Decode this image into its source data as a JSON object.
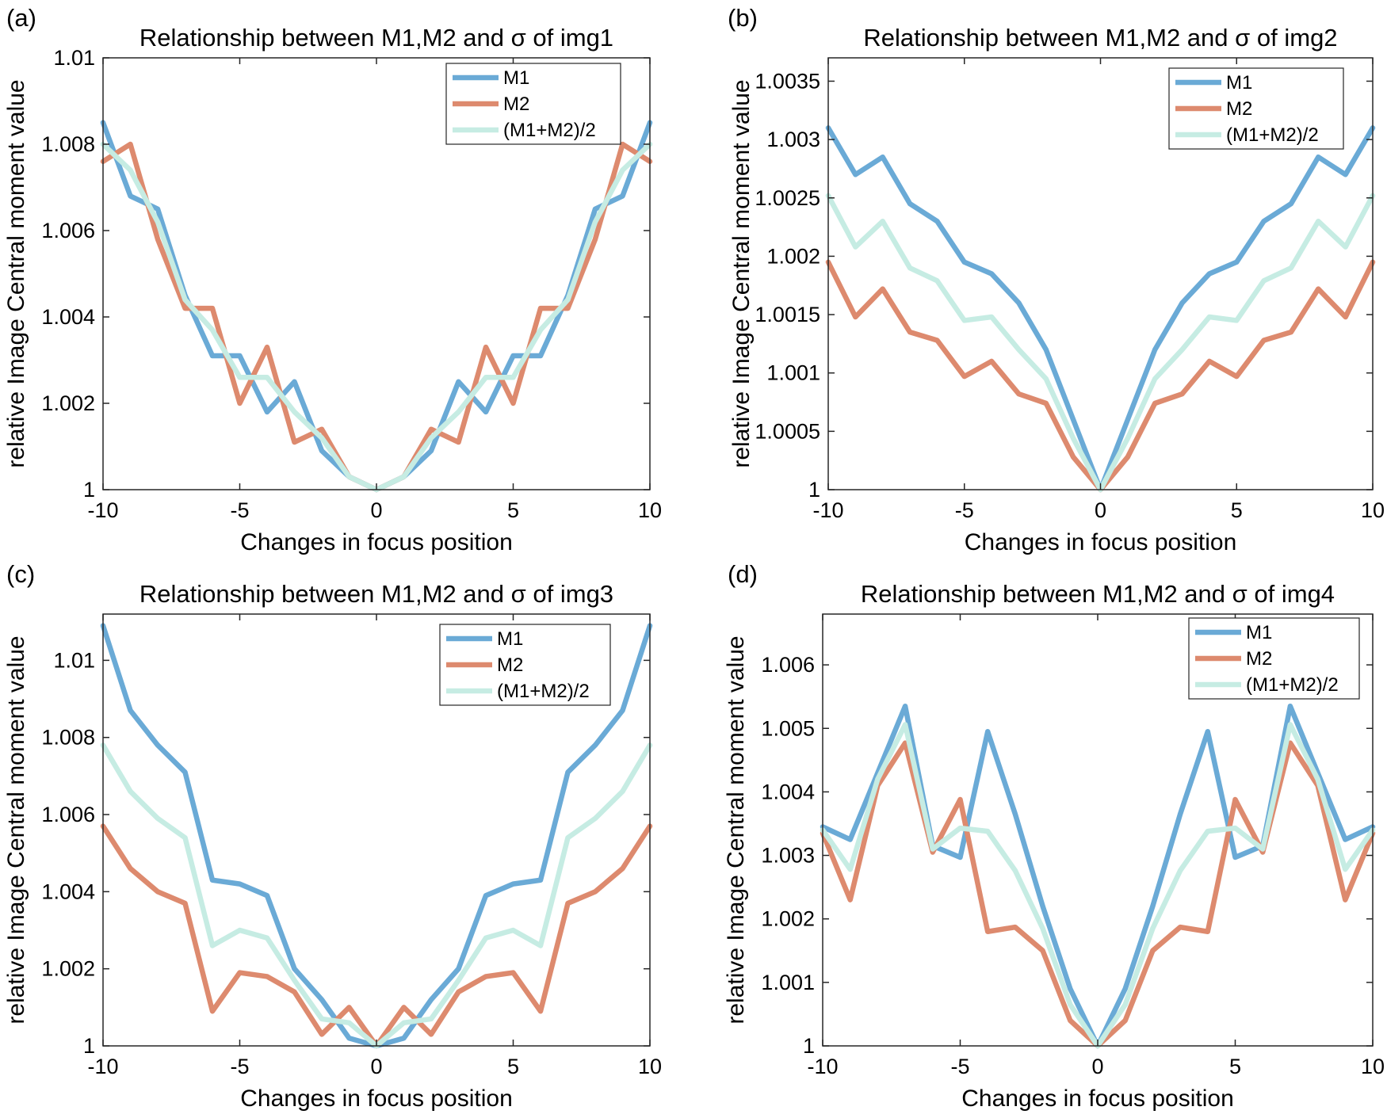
{
  "colors": {
    "M1": "#6aaad6",
    "M2": "#dd8a6e",
    "avg": "#c6ece3"
  },
  "chart_data": [
    {
      "type": "line",
      "panel_label": "(a)",
      "title": "Relationship between M1,M2 and σ of img1",
      "xlabel": "Changes in focus position",
      "ylabel": "relative Image Central moment value",
      "xlim": [
        -10,
        10
      ],
      "ylim": [
        1,
        1.01
      ],
      "xticks": [
        -10,
        -5,
        0,
        5,
        10
      ],
      "xtick_labels": [
        "-10",
        "-5",
        "0",
        "5",
        "10"
      ],
      "yticks": [
        1,
        1.002,
        1.004,
        1.006,
        1.008,
        1.01
      ],
      "ytick_labels": [
        "1",
        "1.002",
        "1.004",
        "1.006",
        "1.008",
        "1.01"
      ],
      "legend_position": "top-right",
      "x": [
        -10,
        -9,
        -8,
        -7,
        -6,
        -5,
        -4,
        -3,
        -2,
        -1,
        0,
        1,
        2,
        3,
        4,
        5,
        6,
        7,
        8,
        9,
        10
      ],
      "series": [
        {
          "name": "M1",
          "color_key": "M1",
          "values": [
            1.0085,
            1.0068,
            1.0065,
            1.0045,
            1.0031,
            1.0031,
            1.0018,
            1.0025,
            1.0009,
            1.0003,
            1.0,
            1.0003,
            1.0009,
            1.0025,
            1.0018,
            1.0031,
            1.0031,
            1.0045,
            1.0065,
            1.0068,
            1.0085
          ]
        },
        {
          "name": "M2",
          "color_key": "M2",
          "values": [
            1.0076,
            1.008,
            1.0058,
            1.0042,
            1.0042,
            1.002,
            1.0033,
            1.0011,
            1.0014,
            1.0003,
            1.0,
            1.0003,
            1.0014,
            1.0011,
            1.0033,
            1.002,
            1.0042,
            1.0042,
            1.0058,
            1.008,
            1.0076
          ]
        },
        {
          "name": "(M1+M2)/2",
          "color_key": "avg",
          "values": [
            1.008,
            1.0074,
            1.0062,
            1.0044,
            1.0037,
            1.0026,
            1.0026,
            1.0018,
            1.0012,
            1.0003,
            1.0,
            1.0003,
            1.0012,
            1.0018,
            1.0026,
            1.0026,
            1.0037,
            1.0044,
            1.0062,
            1.0074,
            1.008
          ]
        }
      ]
    },
    {
      "type": "line",
      "panel_label": "(b)",
      "title": "Relationship between M1,M2 and σ of img2",
      "xlabel": "Changes in focus position",
      "ylabel": "relative Image Central moment value",
      "xlim": [
        -10,
        10
      ],
      "ylim": [
        1,
        1.0037
      ],
      "xticks": [
        -10,
        -5,
        0,
        5,
        10
      ],
      "xtick_labels": [
        "-10",
        "-5",
        "0",
        "5",
        "10"
      ],
      "yticks": [
        1,
        1.0005,
        1.001,
        1.0015,
        1.002,
        1.0025,
        1.003,
        1.0035
      ],
      "ytick_labels": [
        "1",
        "1.0005",
        "1.001",
        "1.0015",
        "1.002",
        "1.0025",
        "1.003",
        "1.0035"
      ],
      "legend_position": "top-right",
      "x": [
        -10,
        -9,
        -8,
        -7,
        -6,
        -5,
        -4,
        -3,
        -2,
        -1,
        0,
        1,
        2,
        3,
        4,
        5,
        6,
        7,
        8,
        9,
        10
      ],
      "series": [
        {
          "name": "M1",
          "color_key": "M1",
          "values": [
            1.0031,
            1.0027,
            1.00285,
            1.00245,
            1.0023,
            1.00195,
            1.00185,
            1.0016,
            1.0012,
            1.0006,
            1.0,
            1.0006,
            1.0012,
            1.0016,
            1.00185,
            1.00195,
            1.0023,
            1.00245,
            1.00285,
            1.0027,
            1.0031
          ]
        },
        {
          "name": "M2",
          "color_key": "M2",
          "values": [
            1.00195,
            1.00148,
            1.00172,
            1.00135,
            1.00128,
            1.00097,
            1.0011,
            1.00082,
            1.00074,
            1.00028,
            1.0,
            1.00028,
            1.00074,
            1.00082,
            1.0011,
            1.00097,
            1.00128,
            1.00135,
            1.00172,
            1.00148,
            1.00195
          ]
        },
        {
          "name": "(M1+M2)/2",
          "color_key": "avg",
          "values": [
            1.00252,
            1.00208,
            1.0023,
            1.0019,
            1.00179,
            1.00145,
            1.00148,
            1.0012,
            1.00095,
            1.00044,
            1.0,
            1.00044,
            1.00095,
            1.0012,
            1.00148,
            1.00145,
            1.00179,
            1.0019,
            1.0023,
            1.00208,
            1.00252
          ]
        }
      ]
    },
    {
      "type": "line",
      "panel_label": "(c)",
      "title": "Relationship between M1,M2 and σ of img3",
      "xlabel": "Changes in focus position",
      "ylabel": "relative Image Central moment value",
      "xlim": [
        -10,
        10
      ],
      "ylim": [
        1,
        1.0112
      ],
      "xticks": [
        -10,
        -5,
        0,
        5,
        10
      ],
      "xtick_labels": [
        "-10",
        "-5",
        "0",
        "5",
        "10"
      ],
      "yticks": [
        1,
        1.002,
        1.004,
        1.006,
        1.008,
        1.01
      ],
      "ytick_labels": [
        "1",
        "1.002",
        "1.004",
        "1.006",
        "1.008",
        "1.01"
      ],
      "legend_position": "top-right",
      "x": [
        -10,
        -9,
        -8,
        -7,
        -6,
        -5,
        -4,
        -3,
        -2,
        -1,
        0,
        1,
        2,
        3,
        4,
        5,
        6,
        7,
        8,
        9,
        10
      ],
      "series": [
        {
          "name": "M1",
          "color_key": "M1",
          "values": [
            1.0109,
            1.0087,
            1.0078,
            1.0071,
            1.0043,
            1.0042,
            1.0039,
            1.002,
            1.0012,
            1.0002,
            1.0,
            1.0002,
            1.0012,
            1.002,
            1.0039,
            1.0042,
            1.0043,
            1.0071,
            1.0078,
            1.0087,
            1.0109
          ]
        },
        {
          "name": "M2",
          "color_key": "M2",
          "values": [
            1.0057,
            1.0046,
            1.004,
            1.0037,
            1.0009,
            1.0019,
            1.0018,
            1.0014,
            1.0003,
            1.001,
            1.0,
            1.001,
            1.0003,
            1.0014,
            1.0018,
            1.0019,
            1.0009,
            1.0037,
            1.004,
            1.0046,
            1.0057
          ]
        },
        {
          "name": "(M1+M2)/2",
          "color_key": "avg",
          "values": [
            1.0078,
            1.0066,
            1.0059,
            1.0054,
            1.0026,
            1.003,
            1.0028,
            1.0017,
            1.0007,
            1.0006,
            1.0,
            1.0006,
            1.0007,
            1.0017,
            1.0028,
            1.003,
            1.0026,
            1.0054,
            1.0059,
            1.0066,
            1.0078
          ]
        }
      ]
    },
    {
      "type": "line",
      "panel_label": "(d)",
      "title": "Relationship between M1,M2 and σ of img4",
      "xlabel": "Changes in focus position",
      "ylabel": "relative Image Central moment value",
      "xlim": [
        -10,
        10
      ],
      "ylim": [
        1,
        1.0068
      ],
      "xticks": [
        -10,
        -5,
        0,
        5,
        10
      ],
      "xtick_labels": [
        "-10",
        "-5",
        "0",
        "5",
        "10"
      ],
      "yticks": [
        1,
        1.001,
        1.002,
        1.003,
        1.004,
        1.005,
        1.006
      ],
      "ytick_labels": [
        "1",
        "1.001",
        "1.002",
        "1.003",
        "1.004",
        "1.005",
        "1.006"
      ],
      "legend_position": "top-right",
      "x": [
        -10,
        -9,
        -8,
        -7,
        -6,
        -5,
        -4,
        -3,
        -2,
        -1,
        0,
        1,
        2,
        3,
        4,
        5,
        6,
        7,
        8,
        9,
        10
      ],
      "series": [
        {
          "name": "M1",
          "color_key": "M1",
          "values": [
            1.00345,
            1.00325,
            1.0043,
            1.00535,
            1.00315,
            1.00297,
            1.00495,
            1.00365,
            1.0022,
            1.0009,
            1.0,
            1.0009,
            1.0022,
            1.00365,
            1.00495,
            1.00297,
            1.00315,
            1.00535,
            1.0043,
            1.00325,
            1.00345
          ]
        },
        {
          "name": "M2",
          "color_key": "M2",
          "values": [
            1.00335,
            1.0023,
            1.0041,
            1.00477,
            1.00305,
            1.00388,
            1.0018,
            1.00187,
            1.0015,
            1.0004,
            1.0,
            1.0004,
            1.0015,
            1.00187,
            1.0018,
            1.00388,
            1.00305,
            1.00477,
            1.0041,
            1.0023,
            1.00335
          ]
        },
        {
          "name": "(M1+M2)/2",
          "color_key": "avg",
          "values": [
            1.0034,
            1.00278,
            1.0042,
            1.00506,
            1.0031,
            1.00343,
            1.00338,
            1.00276,
            1.00185,
            1.00065,
            1.0,
            1.00065,
            1.00185,
            1.00276,
            1.00338,
            1.00343,
            1.0031,
            1.00506,
            1.0042,
            1.00278,
            1.0034
          ]
        }
      ]
    }
  ]
}
